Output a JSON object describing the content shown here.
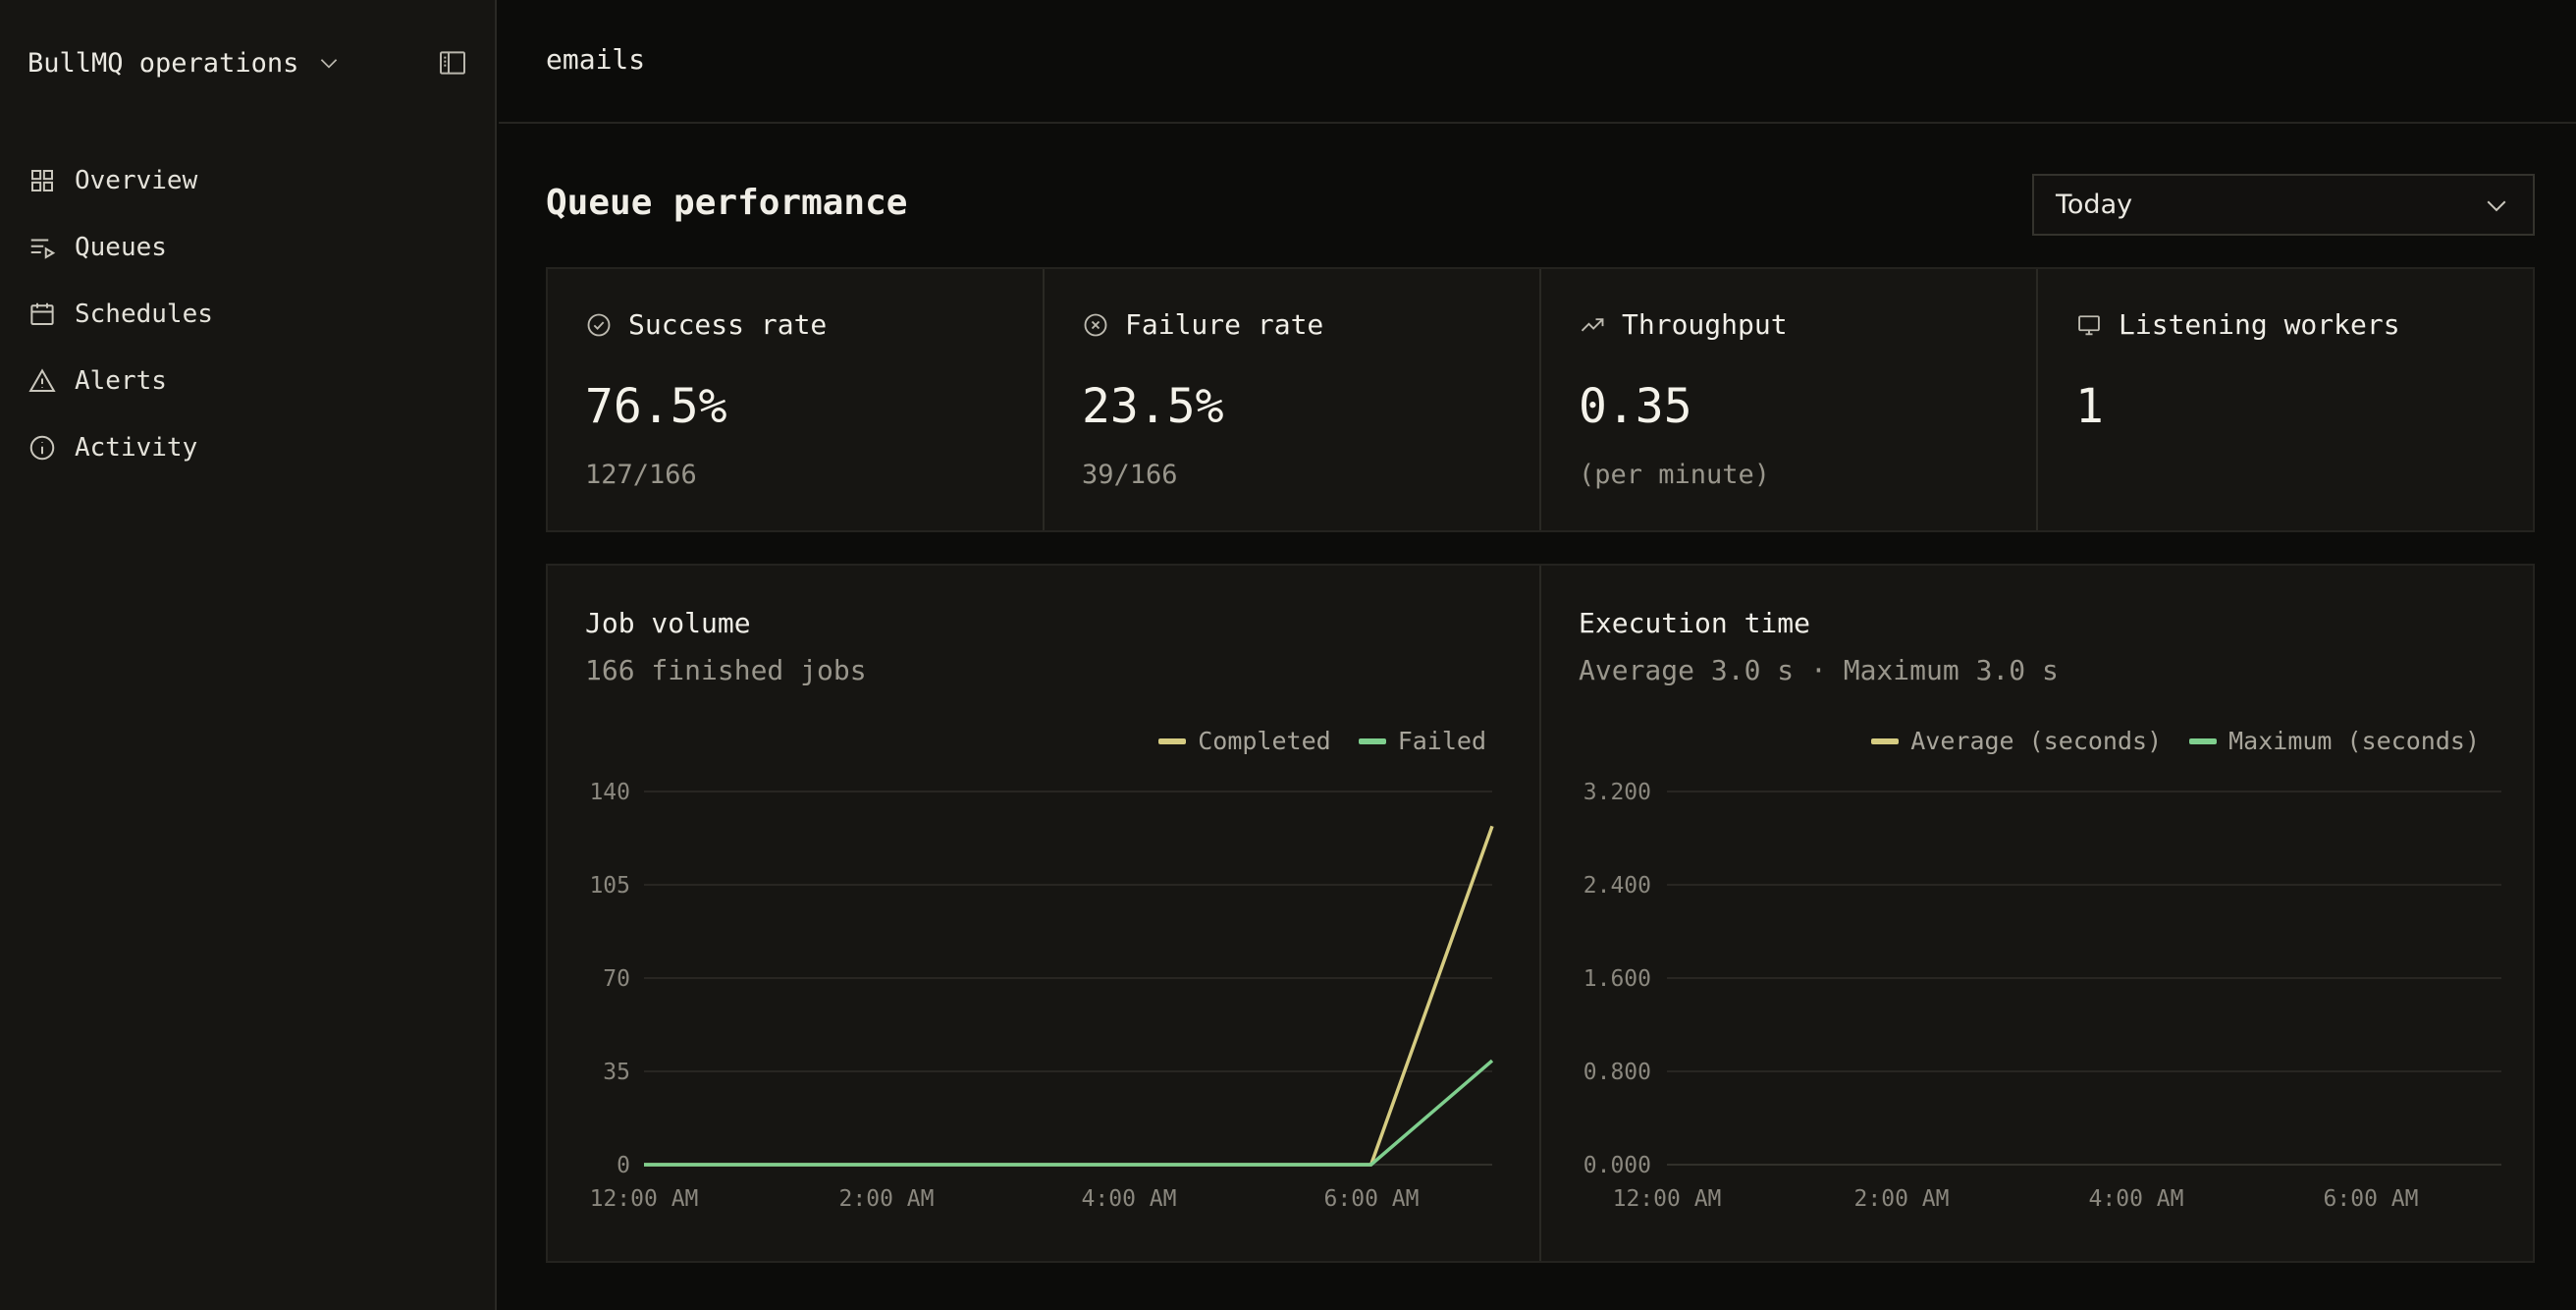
{
  "sidebar": {
    "org_name": "BullMQ operations",
    "items": [
      {
        "label": "Overview",
        "icon": "grid-icon"
      },
      {
        "label": "Queues",
        "icon": "list-play-icon"
      },
      {
        "label": "Schedules",
        "icon": "calendar-icon"
      },
      {
        "label": "Alerts",
        "icon": "alert-triangle-icon"
      },
      {
        "label": "Activity",
        "icon": "info-icon"
      }
    ]
  },
  "header": {
    "breadcrumb": "emails"
  },
  "main": {
    "title": "Queue performance",
    "range": "Today",
    "stats": [
      {
        "label": "Success rate",
        "value": "76.5%",
        "sub": "127/166",
        "icon": "check-circle-icon"
      },
      {
        "label": "Failure rate",
        "value": "23.5%",
        "sub": "39/166",
        "icon": "x-circle-icon"
      },
      {
        "label": "Throughput",
        "value": "0.35",
        "sub": "(per minute)",
        "icon": "trending-up-icon"
      },
      {
        "label": "Listening workers",
        "value": "1",
        "sub": "",
        "icon": "monitor-icon"
      }
    ]
  },
  "colors": {
    "completed": "#d6cc82",
    "failed": "#7fcf8e",
    "grid": "#2e2d28"
  },
  "chart_data": [
    {
      "type": "line",
      "title": "Job volume",
      "subtitle": "166 finished jobs",
      "x_ticks": [
        "12:00 AM",
        "2:00 AM",
        "4:00 AM",
        "6:00 AM"
      ],
      "x": [
        0,
        1,
        2,
        3,
        4,
        5,
        6,
        7
      ],
      "x_range": [
        0,
        7
      ],
      "y_ticks": [
        "0",
        "35",
        "70",
        "105",
        "140"
      ],
      "ylim": [
        0,
        140
      ],
      "series": [
        {
          "name": "Completed",
          "values": [
            0,
            0,
            0,
            0,
            0,
            0,
            0,
            127
          ]
        },
        {
          "name": "Failed",
          "values": [
            0,
            0,
            0,
            0,
            0,
            0,
            0,
            39
          ]
        }
      ],
      "grid": true,
      "legend": "top-right"
    },
    {
      "type": "line",
      "title": "Execution time",
      "subtitle": "Average 3.0 s · Maximum 3.0 s",
      "x_ticks": [
        "12:00 AM",
        "2:00 AM",
        "4:00 AM",
        "6:00 AM"
      ],
      "x": [],
      "x_range": [
        0,
        7
      ],
      "y_ticks": [
        "0.000",
        "0.800",
        "1.600",
        "2.400",
        "3.200"
      ],
      "ylim": [
        0,
        3.2
      ],
      "series": [
        {
          "name": "Average (seconds)",
          "values": []
        },
        {
          "name": "Maximum (seconds)",
          "values": []
        }
      ],
      "grid": true,
      "legend": "top-right"
    }
  ]
}
